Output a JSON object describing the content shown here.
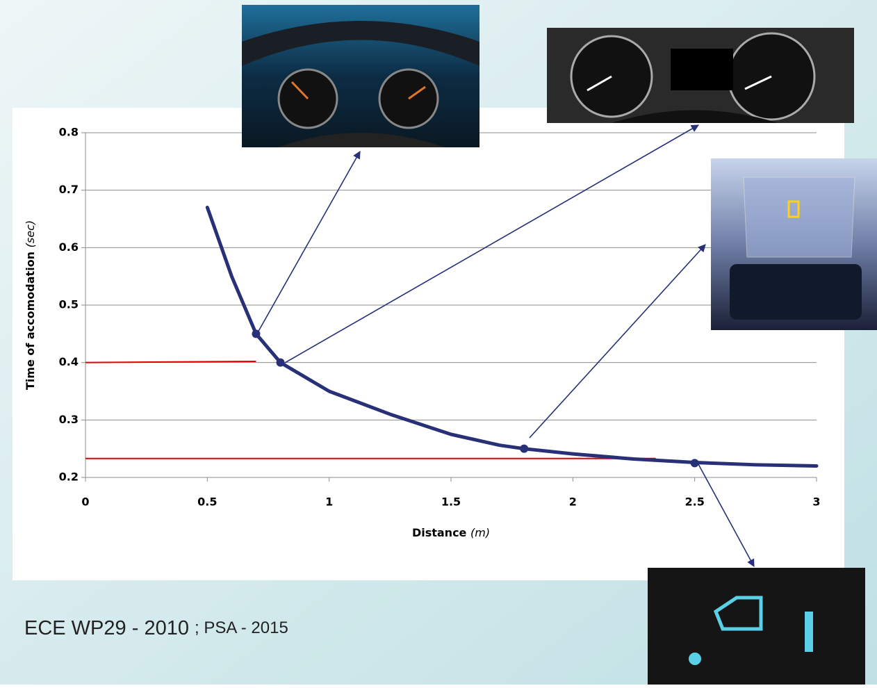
{
  "chart_data": {
    "type": "line",
    "xlabel": {
      "text": "Distance",
      "unit": "(m)"
    },
    "ylabel": {
      "text": "Time of accomodation",
      "unit": "(sec)"
    },
    "x": [
      0.5,
      0.6,
      0.7,
      0.8,
      1.0,
      1.25,
      1.5,
      1.7,
      1.8,
      2.0,
      2.25,
      2.5,
      2.75,
      3.0
    ],
    "series": [
      {
        "color": "#283078",
        "values": [
          0.67,
          0.55,
          0.45,
          0.4,
          0.35,
          0.31,
          0.275,
          0.256,
          0.25,
          0.241,
          0.232,
          0.226,
          0.222,
          0.22
        ]
      }
    ],
    "markers": {
      "x": [
        0.7,
        0.8,
        1.8,
        2.5
      ],
      "values": [
        0.45,
        0.4,
        0.25,
        0.225
      ],
      "color": "#283078"
    },
    "reference_lines": [
      {
        "x": [
          0,
          0.7
        ],
        "values": [
          0.4,
          0.402
        ],
        "color": "#e00000"
      },
      {
        "x": [
          0,
          2.34
        ],
        "values": [
          0.233,
          0.233
        ],
        "color": "#e00000"
      }
    ],
    "xlim": [
      0,
      3
    ],
    "xticks": [
      0,
      0.5,
      1,
      1.5,
      2,
      2.5,
      3
    ],
    "ylim": [
      0.2,
      0.8
    ],
    "yticks": [
      0.2,
      0.3,
      0.4,
      0.5,
      0.6,
      0.7,
      0.8
    ],
    "grid": true
  },
  "source": {
    "parts": [
      "ECE WP29",
      "-",
      "2010",
      "; PSA - 2015"
    ]
  }
}
